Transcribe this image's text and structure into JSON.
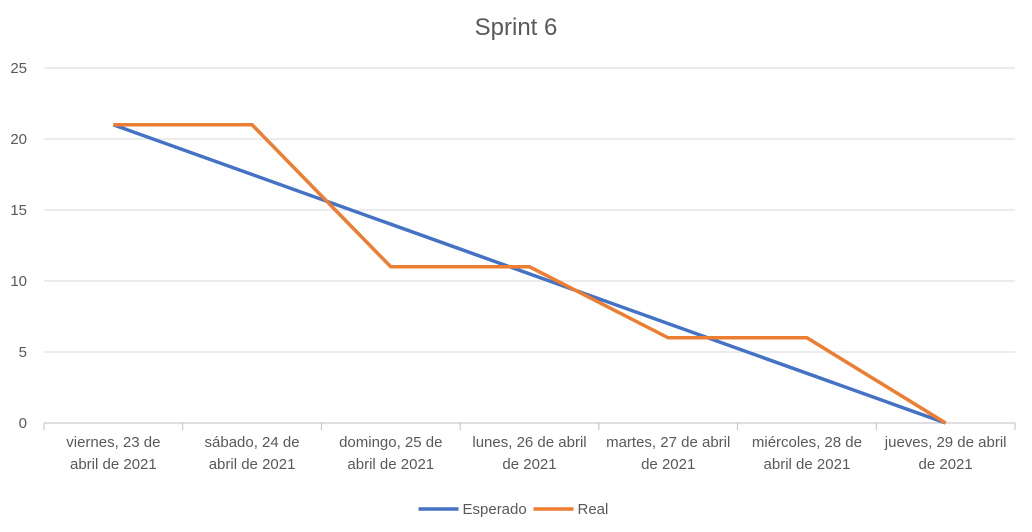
{
  "chart_data": {
    "type": "line",
    "title": "Sprint 6",
    "xlabel": "",
    "ylabel": "",
    "ylim": [
      0,
      25
    ],
    "yticks": [
      "0",
      "5",
      "10",
      "15",
      "20",
      "25"
    ],
    "grid": true,
    "legend": "bottom",
    "categories": [
      [
        "viernes, 23 de",
        "abril de 2021"
      ],
      [
        "sábado, 24 de",
        "abril de 2021"
      ],
      [
        "domingo, 25 de",
        "abril de 2021"
      ],
      [
        "lunes, 26 de abril",
        "de 2021"
      ],
      [
        "martes, 27 de abril",
        "de 2021"
      ],
      [
        "miércoles, 28 de",
        "abril de 2021"
      ],
      [
        "jueves, 29 de abril",
        "de 2021"
      ]
    ],
    "series": [
      {
        "name": "Esperado",
        "color": "#4472c4",
        "values": [
          21,
          17.5,
          14,
          10.5,
          7,
          3.5,
          0
        ]
      },
      {
        "name": "Real",
        "color": "#ed7d31",
        "values": [
          21,
          21,
          11,
          11,
          6,
          6,
          0
        ]
      }
    ]
  }
}
